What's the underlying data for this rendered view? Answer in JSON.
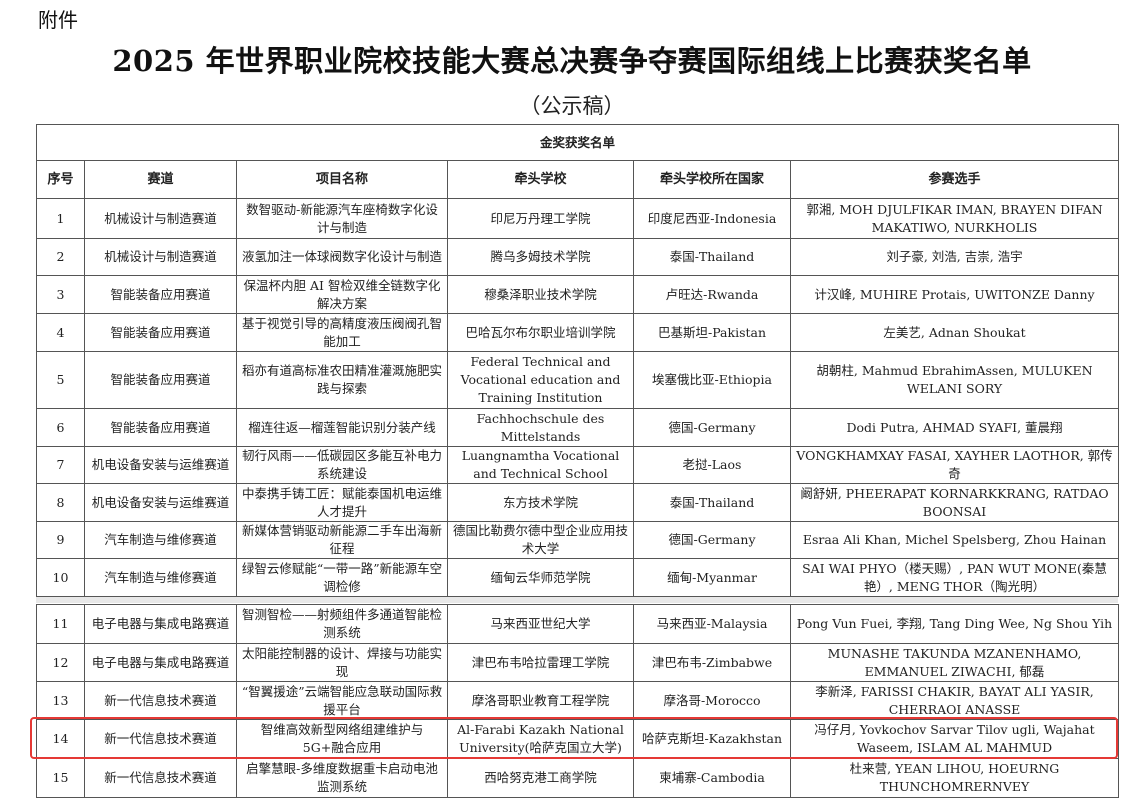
{
  "header": {
    "attachment_label": "附件",
    "title": "2025 年世界职业院校技能大赛总决赛争夺赛国际组线上比赛获奖名单",
    "subtitle": "（公示稿）"
  },
  "table": {
    "section_title": "金奖获奖名单",
    "columns": [
      "序号",
      "赛道",
      "项目名称",
      "牵头学校",
      "牵头学校所在国家",
      "参赛选手"
    ],
    "rows": [
      {
        "no": "1",
        "track": "机械设计与制造赛道",
        "project": "数智驱动-新能源汽车座椅数字化设计与制造",
        "school": "印尼万丹理工学院",
        "country": "印度尼西亚-Indonesia",
        "members": "郭湘, MOH DJULFIKAR IMAN, BRAYEN DIFAN MAKATIWO, NURKHOLIS"
      },
      {
        "no": "2",
        "track": "机械设计与制造赛道",
        "project": "液氢加注一体球阀数字化设计与制造",
        "school": "腾乌多姆技术学院",
        "country": "泰国-Thailand",
        "members": "刘子豪, 刘浩, 吉崇, 浩宇"
      },
      {
        "no": "3",
        "track": "智能装备应用赛道",
        "project": "保温杯内胆 AI 智检双维全链数字化解决方案",
        "school": "穆桑泽职业技术学院",
        "country": "卢旺达-Rwanda",
        "members": "计汉峰, MUHIRE Protais, UWITONZE Danny"
      },
      {
        "no": "4",
        "track": "智能装备应用赛道",
        "project": "基于视觉引导的高精度液压阀阀孔智能加工",
        "school": "巴哈瓦尔布尔职业培训学院",
        "country": "巴基斯坦-Pakistan",
        "members": "左美艺, Adnan Shoukat"
      },
      {
        "no": "5",
        "track": "智能装备应用赛道",
        "project": "稻亦有道高标准农田精准灌溉施肥实践与探索",
        "school": "Federal Technical and Vocational education and Training Institution",
        "country": "埃塞俄比亚-Ethiopia",
        "members": "胡朝柱, Mahmud EbrahimAssen, MULUKEN WELANI SORY"
      },
      {
        "no": "6",
        "track": "智能装备应用赛道",
        "project": "榴连往返—榴莲智能识别分装产线",
        "school": "Fachhochschule des Mittelstands",
        "country": "德国-Germany",
        "members": "Dodi Putra, AHMAD SYAFI, 董晨翔"
      },
      {
        "no": "7",
        "track": "机电设备安装与运维赛道",
        "project": "韧行风雨——低碳园区多能互补电力系统建设",
        "school": "Luangnamtha Vocational and Technical School",
        "country": "老挝-Laos",
        "members": "VONGKHAMXAY FASAI, XAYHER LAOTHOR, 郭传奇"
      },
      {
        "no": "8",
        "track": "机电设备安装与运维赛道",
        "project": "中泰携手铸工匠：赋能泰国机电运维人才提升",
        "school": "东方技术学院",
        "country": "泰国-Thailand",
        "members": "阚舒妍, PHEERAPAT KORNARKKRANG, RATDAO BOONSAI"
      },
      {
        "no": "9",
        "track": "汽车制造与维修赛道",
        "project": "新媒体营销驱动新能源二手车出海新征程",
        "school": "德国比勒费尔德中型企业应用技术大学",
        "country": "德国-Germany",
        "members": "Esraa Ali Khan, Michel Spelsberg, Zhou Hainan"
      },
      {
        "no": "10",
        "track": "汽车制造与维修赛道",
        "project": "绿智云修赋能“一带一路”新能源车空调检修",
        "school": "缅甸云华师范学院",
        "country": "缅甸-Myanmar",
        "members": "SAI WAI PHYO（楼天赐）, PAN WUT MONE(秦慧艳）, MENG THOR（陶光明）"
      }
    ],
    "rows_page2": [
      {
        "no": "11",
        "track": "电子电器与集成电路赛道",
        "project": "智测智检——射频组件多通道智能检测系统",
        "school": "马来西亚世纪大学",
        "country": "马来西亚-Malaysia",
        "members": "Pong Vun Fuei, 李翔, Tang Ding Wee, Ng Shou Yih"
      },
      {
        "no": "12",
        "track": "电子电器与集成电路赛道",
        "project": "太阳能控制器的设计、焊接与功能实现",
        "school": "津巴布韦哈拉雷理工学院",
        "country": "津巴布韦-Zimbabwe",
        "members": "MUNASHE TAKUNDA MZANENHAMO, EMMANUEL ZIWACHI, 郁磊"
      },
      {
        "no": "13",
        "track": "新一代信息技术赛道",
        "project": "“智翼援途”云端智能应急联动国际救援平台",
        "school": "摩洛哥职业教育工程学院",
        "country": "摩洛哥-Morocco",
        "members": "李新泽, FARISSI CHAKIR, BAYAT ALI YASIR, CHERRAOI ANASSE"
      },
      {
        "no": "14",
        "track": "新一代信息技术赛道",
        "project": "智维高效新型网络组建维护与5G+融合应用",
        "school": "Al-Farabi Kazakh National University(哈萨克国立大学)",
        "country": "哈萨克斯坦-Kazakhstan",
        "members": "冯仔月, Yovkochov Sarvar Tilov ugli, Wajahat Waseem, ISLAM AL MAHMUD",
        "highlighted": true
      },
      {
        "no": "15",
        "track": "新一代信息技术赛道",
        "project": "启擎慧眼-多维度数据重卡启动电池监测系统",
        "school": "西哈努克港工商学院",
        "country": "柬埔寨-Cambodia",
        "members": "杜来营, YEAN LIHOU, HOEURNG THUNCHOMRERNVEY"
      }
    ]
  },
  "colors": {
    "highlight": "#e53935",
    "border": "#555555"
  }
}
